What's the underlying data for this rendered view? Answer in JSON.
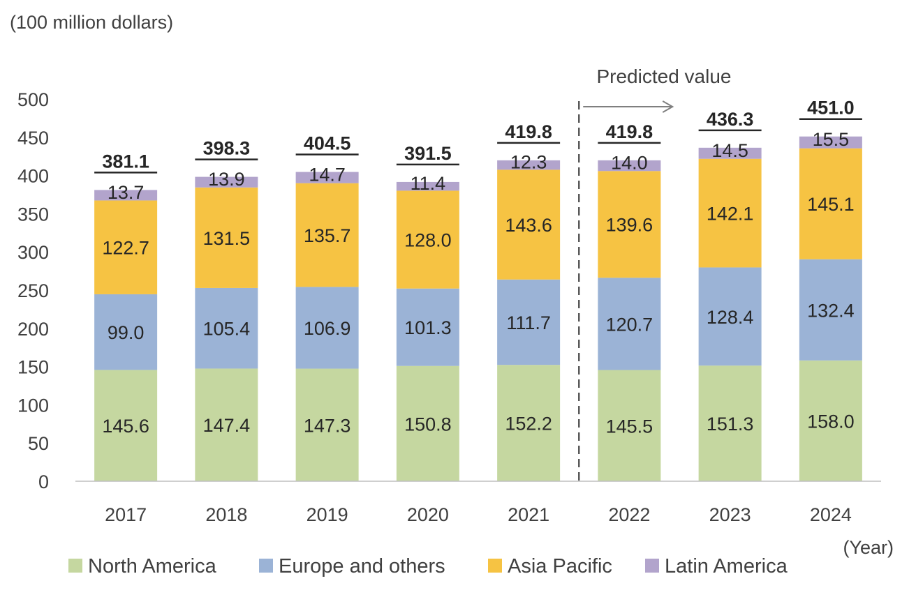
{
  "chart_data": {
    "type": "bar",
    "stacked": true,
    "y_unit": "(100 million dollars)",
    "x_unit": "(Year)",
    "categories": [
      "2017",
      "2018",
      "2019",
      "2020",
      "2021",
      "2022",
      "2023",
      "2024"
    ],
    "series": [
      {
        "name": "North America",
        "color": "#C5D7A0",
        "values": [
          145.6,
          147.4,
          147.3,
          150.8,
          152.2,
          145.5,
          151.3,
          158.0
        ]
      },
      {
        "name": "Europe and others",
        "color": "#9BB3D6",
        "values": [
          99.0,
          105.4,
          106.9,
          101.3,
          111.7,
          120.7,
          128.4,
          132.4
        ]
      },
      {
        "name": "Asia Pacific",
        "color": "#F6C343",
        "values": [
          122.7,
          131.5,
          135.7,
          128.0,
          143.6,
          139.6,
          142.1,
          145.1
        ]
      },
      {
        "name": "Latin America",
        "color": "#B2A4CC",
        "values": [
          13.7,
          13.9,
          14.7,
          11.4,
          12.3,
          14.0,
          14.5,
          15.5
        ]
      }
    ],
    "totals": [
      "381.1",
      "398.3",
      "404.5",
      "391.5",
      "419.8",
      "419.8",
      "436.3",
      "451.0"
    ],
    "ylim": [
      0,
      500
    ],
    "yticks": [
      0,
      50,
      100,
      150,
      200,
      250,
      300,
      350,
      400,
      450,
      500
    ],
    "grid": false,
    "legend_position": "bottom",
    "annotation": {
      "text": "Predicted value",
      "starts_after_category": "2021"
    }
  }
}
